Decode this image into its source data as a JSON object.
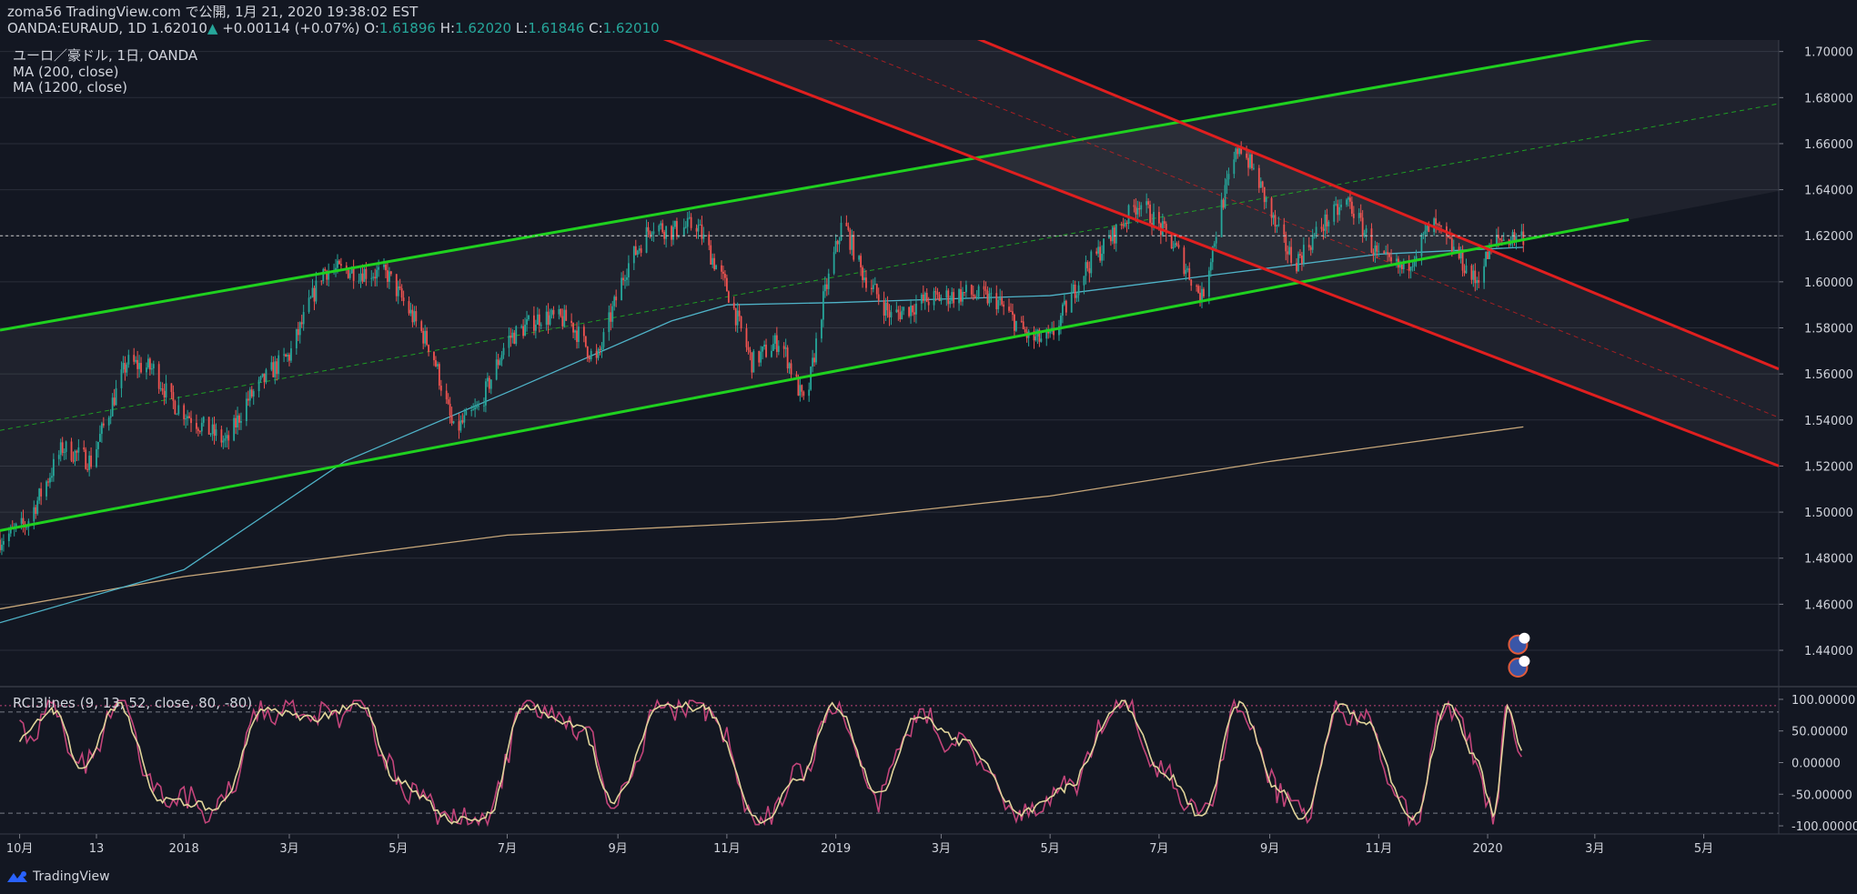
{
  "header": {
    "line1": "zoma56 TradingView.com で公開, 1月 21, 2020 19:38:02 EST",
    "symbol": "OANDA:EURAUD, 1D",
    "last": "1.62010",
    "arrow": "▲",
    "change": "+0.00114 (+0.07%)",
    "o_label": "O:",
    "o_value": "1.61896",
    "h_label": "H:",
    "h_value": "1.62020",
    "l_label": "L:",
    "l_value": "1.61846",
    "c_label": "C:",
    "c_value": "1.62010"
  },
  "legend": {
    "title": "ユーロ／豪ドル, 1日, OANDA",
    "ma200": "MA (200, close)",
    "ma1200": "MA (1200, close)"
  },
  "indicator": {
    "title": "RCI3lines (9, 13, 52, close, 80, -80)"
  },
  "footer": {
    "brand": "TradingView"
  },
  "colors": {
    "background": "#131722",
    "grid": "#2a2e39",
    "up": "#26a69a",
    "down": "#ef5350",
    "ma200": "#4fb3c8",
    "ma1200": "#c7a77a",
    "channel_green": "#1fd11f",
    "channel_red": "#e01f1f",
    "rci_short": "#e0d49a",
    "rci_mid": "#c2447a"
  },
  "chart_data": {
    "type": "candlestick",
    "title": "ユーロ／豪ドル, 1日, OANDA",
    "price_axis": {
      "ylim": [
        1.425,
        1.705
      ],
      "ticks": [
        "1.70000",
        "1.68000",
        "1.66000",
        "1.64000",
        "1.62000",
        "1.60000",
        "1.58000",
        "1.56000",
        "1.54000",
        "1.52000",
        "1.50000",
        "1.48000",
        "1.46000",
        "1.44000"
      ]
    },
    "time_axis": {
      "labels": [
        "10月",
        "13",
        "2018",
        "3月",
        "5月",
        "7月",
        "9月",
        "11月",
        "2019",
        "3月",
        "5月",
        "7月",
        "9月",
        "11月",
        "2020",
        "3月",
        "5月"
      ],
      "dates": [
        "2017-10-01",
        "2017-11-13",
        "2018-01-01",
        "2018-03-01",
        "2018-05-01",
        "2018-07-01",
        "2018-09-01",
        "2018-11-01",
        "2019-01-01",
        "2019-03-01",
        "2019-05-01",
        "2019-07-01",
        "2019-09-01",
        "2019-11-01",
        "2020-01-01",
        "2020-03-01",
        "2020-05-01"
      ]
    },
    "close_path": [
      [
        "2017-09-20",
        1.488
      ],
      [
        "2017-10-05",
        1.495
      ],
      [
        "2017-10-25",
        1.528
      ],
      [
        "2017-11-10",
        1.522
      ],
      [
        "2017-11-30",
        1.565
      ],
      [
        "2017-12-15",
        1.562
      ],
      [
        "2017-12-25",
        1.548
      ],
      [
        "2018-01-10",
        1.538
      ],
      [
        "2018-01-25",
        1.53
      ],
      [
        "2018-02-05",
        1.548
      ],
      [
        "2018-02-20",
        1.562
      ],
      [
        "2018-03-01",
        1.568
      ],
      [
        "2018-03-20",
        1.605
      ],
      [
        "2018-04-05",
        1.605
      ],
      [
        "2018-04-25",
        1.603
      ],
      [
        "2018-05-05",
        1.59
      ],
      [
        "2018-05-20",
        1.57
      ],
      [
        "2018-06-01",
        1.535
      ],
      [
        "2018-06-15",
        1.545
      ],
      [
        "2018-07-01",
        1.575
      ],
      [
        "2018-07-20",
        1.585
      ],
      [
        "2018-08-05",
        1.583
      ],
      [
        "2018-08-20",
        1.565
      ],
      [
        "2018-09-05",
        1.605
      ],
      [
        "2018-09-20",
        1.625
      ],
      [
        "2018-10-01",
        1.622
      ],
      [
        "2018-10-15",
        1.625
      ],
      [
        "2018-11-01",
        1.597
      ],
      [
        "2018-11-15",
        1.565
      ],
      [
        "2018-12-01",
        1.575
      ],
      [
        "2018-12-15",
        1.545
      ],
      [
        "2018-12-25",
        1.592
      ],
      [
        "2019-01-05",
        1.627
      ],
      [
        "2019-01-15",
        1.605
      ],
      [
        "2019-02-01",
        1.585
      ],
      [
        "2019-02-20",
        1.592
      ],
      [
        "2019-03-15",
        1.595
      ],
      [
        "2019-04-01",
        1.592
      ],
      [
        "2019-04-20",
        1.575
      ],
      [
        "2019-05-01",
        1.575
      ],
      [
        "2019-05-20",
        1.605
      ],
      [
        "2019-06-05",
        1.62
      ],
      [
        "2019-06-20",
        1.635
      ],
      [
        "2019-07-10",
        1.615
      ],
      [
        "2019-07-25",
        1.593
      ],
      [
        "2019-08-05",
        1.633
      ],
      [
        "2019-08-15",
        1.66
      ],
      [
        "2019-08-25",
        1.645
      ],
      [
        "2019-09-05",
        1.622
      ],
      [
        "2019-09-15",
        1.608
      ],
      [
        "2019-10-01",
        1.625
      ],
      [
        "2019-10-15",
        1.635
      ],
      [
        "2019-11-01",
        1.61
      ],
      [
        "2019-11-15",
        1.605
      ],
      [
        "2019-12-01",
        1.625
      ],
      [
        "2019-12-15",
        1.612
      ],
      [
        "2019-12-25",
        1.6
      ],
      [
        "2020-01-05",
        1.618
      ],
      [
        "2020-01-21",
        1.6201
      ]
    ],
    "ma200_path": [
      [
        "2017-09-20",
        1.452
      ],
      [
        "2018-01-01",
        1.475
      ],
      [
        "2018-04-01",
        1.522
      ],
      [
        "2018-07-01",
        1.552
      ],
      [
        "2018-10-01",
        1.583
      ],
      [
        "2018-11-01",
        1.59
      ],
      [
        "2019-01-01",
        1.591
      ],
      [
        "2019-05-01",
        1.594
      ],
      [
        "2019-08-01",
        1.603
      ],
      [
        "2019-11-01",
        1.612
      ],
      [
        "2020-01-21",
        1.615
      ]
    ],
    "ma1200_path": [
      [
        "2017-09-20",
        1.458
      ],
      [
        "2018-01-01",
        1.472
      ],
      [
        "2018-07-01",
        1.49
      ],
      [
        "2019-01-01",
        1.497
      ],
      [
        "2019-05-01",
        1.507
      ],
      [
        "2019-09-01",
        1.522
      ],
      [
        "2020-01-21",
        1.537
      ]
    ],
    "rci_axis": {
      "ylim": [
        -110,
        110
      ],
      "ticks": [
        "100.00000",
        "50.00000",
        "0.00000",
        "-50.00000",
        "-100.00000"
      ],
      "levels": [
        80,
        -80
      ]
    },
    "rci_points": [
      [
        "2017-10-01",
        40
      ],
      [
        "2017-10-20",
        80
      ],
      [
        "2017-11-05",
        -10
      ],
      [
        "2017-11-25",
        90
      ],
      [
        "2017-12-20",
        -60
      ],
      [
        "2018-01-20",
        -70
      ],
      [
        "2018-02-15",
        85
      ],
      [
        "2018-03-15",
        70
      ],
      [
        "2018-04-10",
        90
      ],
      [
        "2018-05-01",
        -30
      ],
      [
        "2018-06-01",
        -90
      ],
      [
        "2018-06-20",
        -85
      ],
      [
        "2018-07-10",
        90
      ],
      [
        "2018-08-10",
        60
      ],
      [
        "2018-08-30",
        -60
      ],
      [
        "2018-09-25",
        95
      ],
      [
        "2018-10-20",
        85
      ],
      [
        "2018-11-20",
        -95
      ],
      [
        "2018-12-10",
        -30
      ],
      [
        "2019-01-01",
        90
      ],
      [
        "2019-01-25",
        -50
      ],
      [
        "2019-02-15",
        70
      ],
      [
        "2019-03-15",
        30
      ],
      [
        "2019-04-15",
        -80
      ],
      [
        "2019-05-10",
        -40
      ],
      [
        "2019-06-10",
        95
      ],
      [
        "2019-07-05",
        -20
      ],
      [
        "2019-07-25",
        -85
      ],
      [
        "2019-08-15",
        95
      ],
      [
        "2019-09-05",
        -40
      ],
      [
        "2019-09-20",
        -90
      ],
      [
        "2019-10-10",
        90
      ],
      [
        "2019-10-25",
        60
      ],
      [
        "2019-11-20",
        -90
      ],
      [
        "2019-12-10",
        90
      ],
      [
        "2019-12-25",
        10
      ],
      [
        "2020-01-05",
        -80
      ],
      [
        "2020-01-12",
        85
      ],
      [
        "2020-01-21",
        10
      ]
    ],
    "channel_lines_green": [
      [
        [
          "2017-09-20",
          1.579
        ],
        [
          "2020-04-05",
          1.706
        ]
      ],
      [
        [
          "2017-09-20",
          1.492
        ],
        [
          "2020-03-20",
          1.627
        ]
      ]
    ],
    "channel_lines_red": [
      [
        [
          "2018-09-25",
          1.706
        ],
        [
          "2020-03-20",
          1.545
        ]
      ],
      [
        [
          "2019-03-20",
          1.706
        ],
        [
          "2020-03-20",
          1.589
        ]
      ]
    ],
    "current_price_line": 1.62
  }
}
